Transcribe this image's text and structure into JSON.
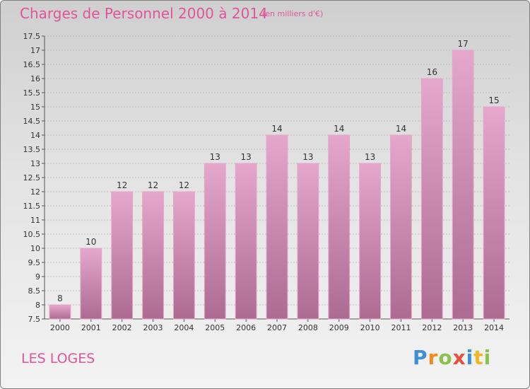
{
  "header": {
    "title": "Charges de Personnel 2000 à 2014",
    "subtitle": "(en milliers d'€)"
  },
  "footer": {
    "commune": "LES LOGES",
    "logo_text": "Proxiti"
  },
  "colors": {
    "title": "#e0559a",
    "bar_top": "#e5a7cc",
    "bar_bottom": "#ad6b92",
    "bar_border": "#e3a8c8"
  },
  "chart_data": {
    "type": "bar",
    "categories": [
      "2000",
      "2001",
      "2002",
      "2003",
      "2004",
      "2005",
      "2006",
      "2007",
      "2008",
      "2009",
      "2010",
      "2011",
      "2012",
      "2013",
      "2014"
    ],
    "values": [
      8,
      10,
      12,
      12,
      12,
      13,
      13,
      14,
      13,
      14,
      13,
      14,
      16,
      17,
      15
    ],
    "data_labels": [
      "8",
      "10",
      "12",
      "12",
      "12",
      "13",
      "13",
      "14",
      "13",
      "14",
      "13",
      "14",
      "16",
      "17",
      "15"
    ],
    "ylim": [
      7.5,
      17.5
    ],
    "yticks": [
      7.5,
      8,
      8.5,
      9,
      9.5,
      10,
      10.5,
      11,
      11.5,
      12,
      12.5,
      13,
      13.5,
      14,
      14.5,
      15,
      15.5,
      16,
      16.5,
      17,
      17.5
    ],
    "ytick_labels": [
      "7.5",
      "8",
      "8.5",
      "9",
      "9.5",
      "10",
      "10.5",
      "11",
      "11.5",
      "12",
      "12.5",
      "13",
      "13.5",
      "14",
      "14.5",
      "15",
      "15.5",
      "16",
      "16.5",
      "17",
      "17.5"
    ],
    "grid": true,
    "legend": "none",
    "xlabel": "",
    "ylabel": ""
  }
}
